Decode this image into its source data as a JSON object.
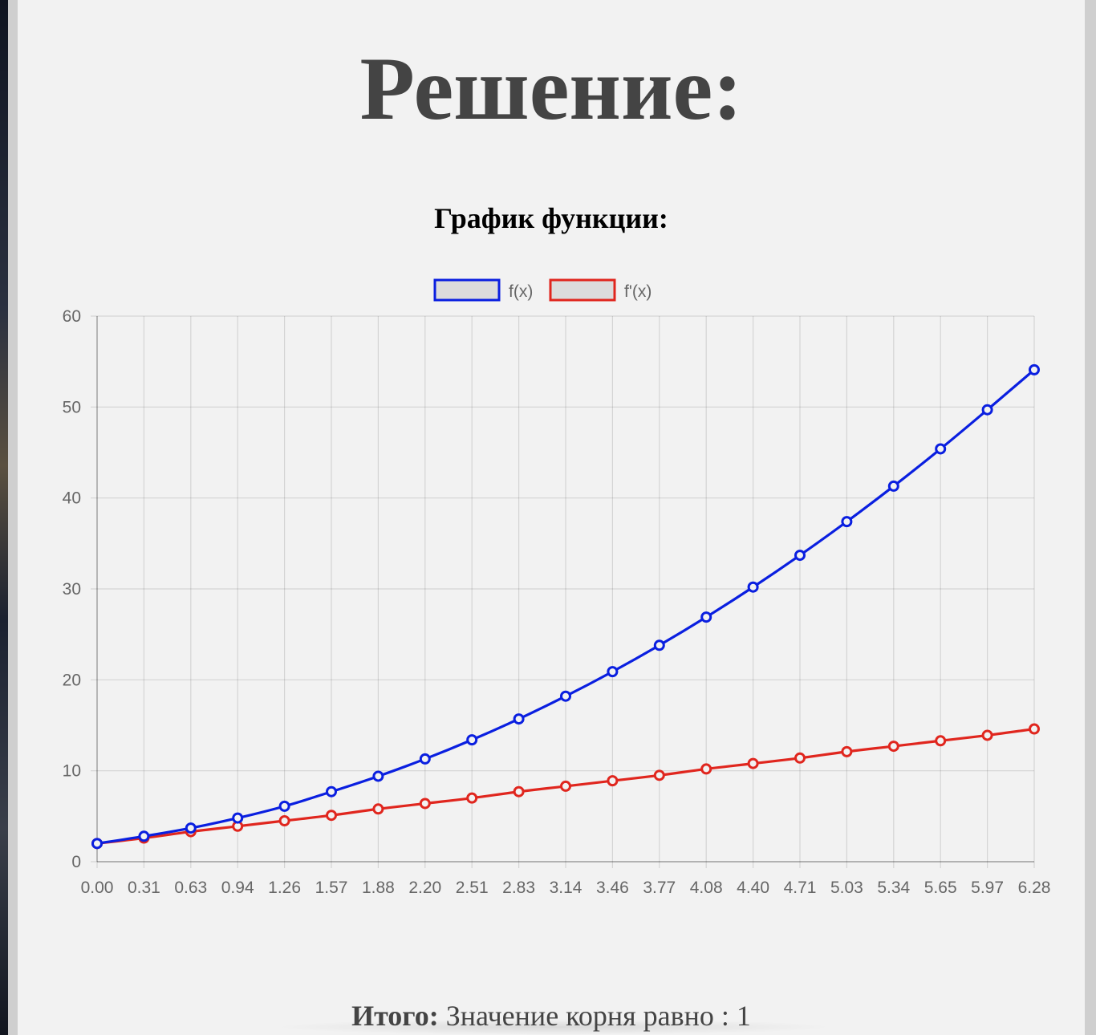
{
  "page": {
    "title": "Решение:"
  },
  "chart_data": {
    "type": "line",
    "title": "График функции:",
    "xlabel": "",
    "ylabel": "",
    "ylim": [
      0,
      60
    ],
    "y_ticks": [
      0,
      10,
      20,
      30,
      40,
      50,
      60
    ],
    "grid": true,
    "legend_position": "top-center",
    "categories": [
      "0.00",
      "0.31",
      "0.63",
      "0.94",
      "1.26",
      "1.57",
      "1.88",
      "2.20",
      "2.51",
      "2.83",
      "3.14",
      "3.46",
      "3.77",
      "4.08",
      "4.40",
      "4.71",
      "5.03",
      "5.34",
      "5.65",
      "5.97",
      "6.28"
    ],
    "series": [
      {
        "name": "f(x)",
        "color": "#0a1fe0",
        "values": [
          2.0,
          2.8,
          3.7,
          4.8,
          6.1,
          7.7,
          9.4,
          11.3,
          13.4,
          15.7,
          18.2,
          20.9,
          23.8,
          26.9,
          30.2,
          33.7,
          37.4,
          41.3,
          45.4,
          49.7,
          54.1
        ]
      },
      {
        "name": "f'(x)",
        "color": "#e0261e",
        "values": [
          2.0,
          2.6,
          3.3,
          3.9,
          4.5,
          5.1,
          5.8,
          6.4,
          7.0,
          7.7,
          8.3,
          8.9,
          9.5,
          10.2,
          10.8,
          11.4,
          12.1,
          12.7,
          13.3,
          13.9,
          14.6
        ]
      }
    ]
  },
  "summary": {
    "label": "Итого:",
    "text": " Значение корня равно : 1"
  }
}
